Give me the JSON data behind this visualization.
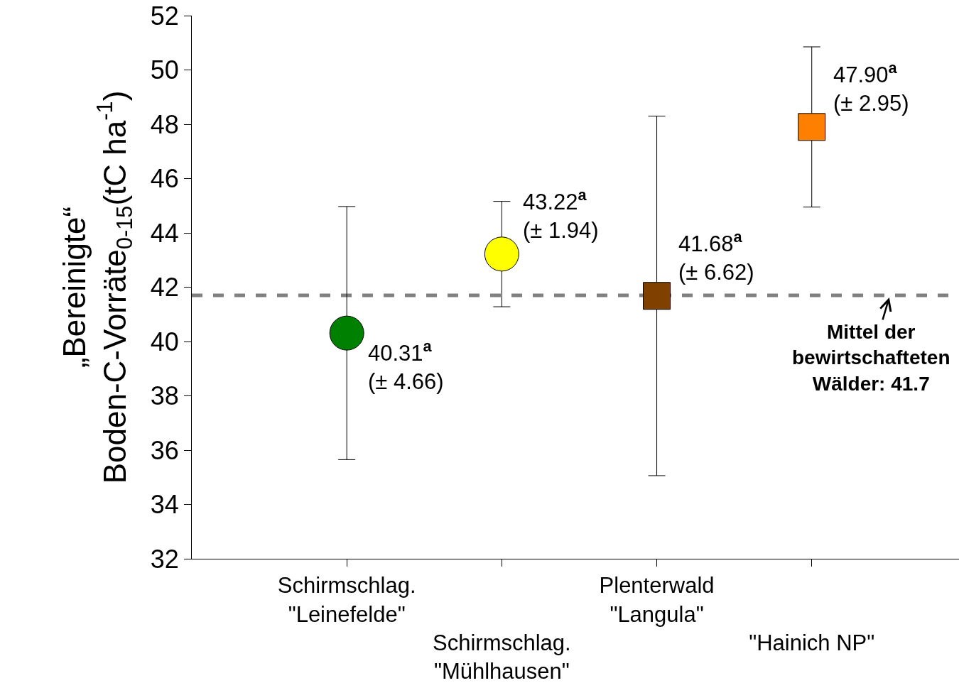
{
  "chart_data": {
    "type": "scatter",
    "ylabel": "„Bereinigte“\nBoden-C-Vorräte$_{0-15}$(tC ha$^{-1}$)",
    "categories": [
      "Schirmschlag.\n\"Leinefelde\"",
      "Schirmschlag.\n\"Mühlhausen\"",
      "Plenterwald\n\"Langula\"",
      "\"Hainich NP\""
    ],
    "series": [
      {
        "marker": "circle",
        "colors": [
          "#008000",
          "#ffff00",
          null,
          null
        ],
        "values": [
          40.31,
          43.22,
          null,
          null
        ],
        "errors": [
          4.66,
          1.94,
          null,
          null
        ],
        "value_labels": [
          "40.31$^{a}$\n(± 4.66)",
          "43.22$^{a}$\n(± 1.94)",
          null,
          null
        ]
      },
      {
        "marker": "square",
        "colors": [
          null,
          null,
          "#804000",
          "#ff8000"
        ],
        "values": [
          null,
          null,
          41.68,
          47.9
        ],
        "errors": [
          null,
          null,
          6.62,
          2.95
        ],
        "value_labels": [
          null,
          null,
          "41.68$^{a}$\n(± 6.62)",
          "47.90$^{a}$\n(± 2.95)"
        ]
      }
    ],
    "ylim": [
      32,
      52
    ],
    "yticks": [
      32,
      34,
      36,
      38,
      40,
      42,
      44,
      46,
      48,
      50,
      52
    ],
    "ref_lines": [
      {
        "axis": "y",
        "value": 41.7,
        "label": "Mittel der\nbewirtschafteten\nWälder: 41.7",
        "color": "#808080",
        "line_style": "dashed"
      }
    ]
  }
}
